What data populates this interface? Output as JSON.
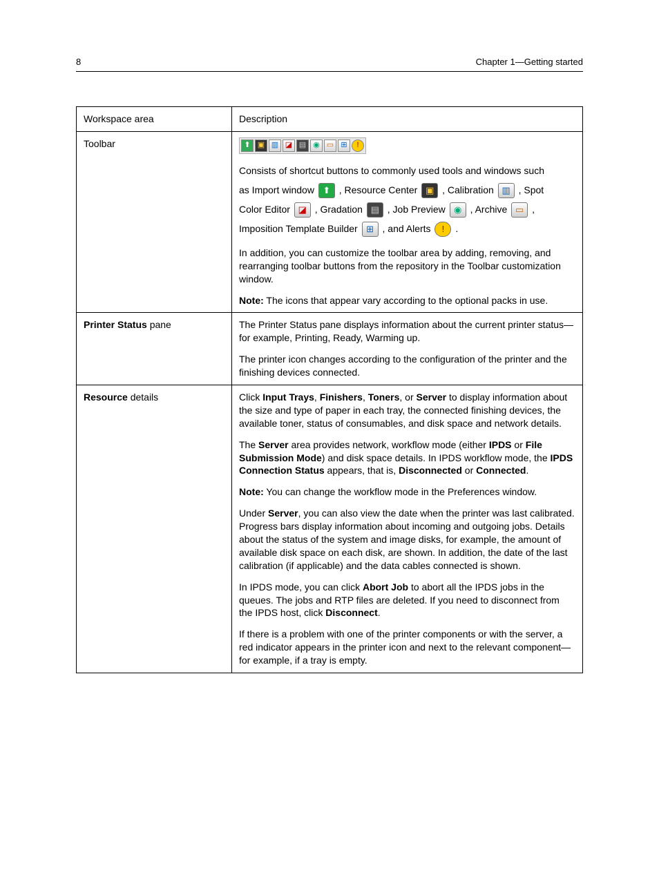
{
  "header": {
    "page_number": "8",
    "chapter": "Chapter 1—Getting started"
  },
  "table": {
    "head": {
      "col_a": "Workspace area",
      "col_b": "Description"
    },
    "toolbar_row": {
      "label": "Toolbar",
      "p1_a": "Consists of shortcut buttons to commonly used tools and windows such",
      "p1_b": "as Import window ",
      "p1_c": ", Resource Center ",
      "p1_d": ", Calibration ",
      "p1_e": ", Spot",
      "p1_f": "Color Editor ",
      "p1_g": ", Gradation ",
      "p1_h": ", Job Preview ",
      "p1_i": ", Archive ",
      "p1_j": ",",
      "p1_k": "Imposition Template Builder ",
      "p1_l": ", and Alerts ",
      "p1_m": ".",
      "p2": "In addition, you can customize the toolbar area by adding, removing, and rearranging toolbar buttons from the repository in the Toolbar customization window.",
      "p3_a": "Note:",
      "p3_b": " The icons that appear vary according to the optional packs in use."
    },
    "printer_status_row": {
      "label_bold": "Printer Status",
      "label_rest": " pane",
      "p1": "The Printer Status pane displays information about the current printer status—for example, Printing, Ready, Warming up.",
      "p2": "The printer icon changes according to the configuration of the printer and the finishing devices connected."
    },
    "resource_row": {
      "label_bold": "Resource",
      "label_rest": " details",
      "p1_a": "Click ",
      "p1_b": "Input Trays",
      "p1_c": ", ",
      "p1_d": "Finishers",
      "p1_e": ", ",
      "p1_f": "Toners",
      "p1_g": ", or ",
      "p1_h": "Server",
      "p1_i": " to display information about the size and type of paper in each tray, the connected finishing devices, the available toner, status of consumables, and disk space and network details.",
      "p2_a": "The ",
      "p2_b": "Server",
      "p2_c": " area provides network, workflow mode (either ",
      "p2_d": "IPDS",
      "p2_e": " or ",
      "p2_f": "File Submission Mode",
      "p2_g": ") and disk space details. In IPDS workflow mode, the ",
      "p2_h": "IPDS Connection Status",
      "p2_i": " appears, that is, ",
      "p2_j": "Disconnected",
      "p2_k": " or ",
      "p2_l": "Connected",
      "p2_m": ".",
      "p3_a": "Note:",
      "p3_b": " You can change the workflow mode in the Preferences window.",
      "p4_a": "Under ",
      "p4_b": "Server",
      "p4_c": ", you can also view the date when the printer was last calibrated. Progress bars display information about incoming and outgoing jobs. Details about the status of the system and image disks, for example, the amount of available disk space on each disk, are shown. In addition, the date of the last calibration (if applicable) and the data cables connected is shown.",
      "p5_a": "In IPDS mode, you can click ",
      "p5_b": "Abort Job",
      "p5_c": " to abort all the IPDS jobs in the queues. The jobs and RTP files are deleted. If you need to disconnect from the IPDS host, click ",
      "p5_d": "Disconnect",
      "p5_e": ".",
      "p6": "If there is a problem with one of the printer components or with the server, a red indicator appears in the printer icon and next to the relevant component—for example, if a tray is empty."
    }
  },
  "icons": {
    "import": "⬆",
    "resource_center": "🗂",
    "calibration": "▥",
    "spot_color": "🟥",
    "gradation": "▤",
    "job_preview": "👁",
    "archive": "🗄",
    "imposition": "⊞",
    "alerts": "⚠"
  },
  "colors": {
    "toolbar_bg": "#e8e8e8",
    "icon_border": "#777777",
    "text": "#000000"
  }
}
